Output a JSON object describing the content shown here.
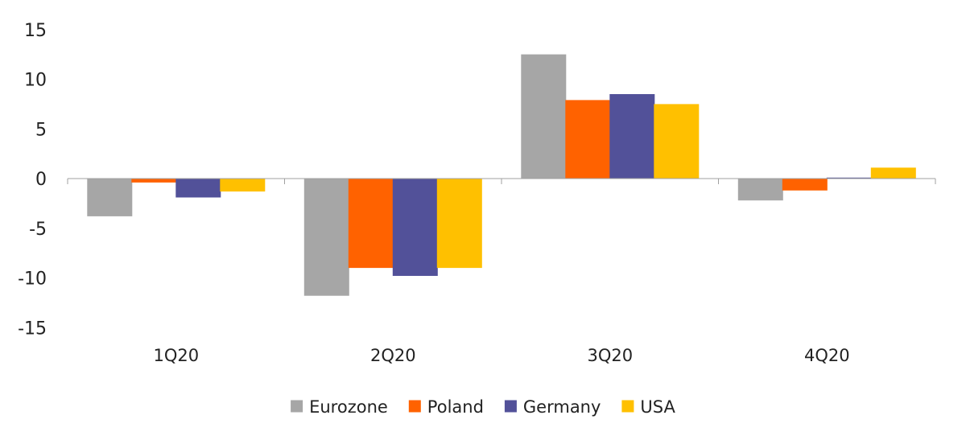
{
  "chart_data": {
    "type": "bar",
    "title": "",
    "xlabel": "",
    "ylabel": "",
    "categories": [
      "1Q20",
      "2Q20",
      "3Q20",
      "4Q20"
    ],
    "ylim": [
      -15,
      15
    ],
    "yticks": [
      15,
      10,
      5,
      0,
      -5,
      -10,
      -15
    ],
    "grid": false,
    "legend_position": "bottom-center",
    "series": [
      {
        "name": "Eurozone",
        "color": "#A6A6A6",
        "values": [
          -3.8,
          -11.8,
          12.5,
          -2.2
        ]
      },
      {
        "name": "Poland",
        "color": "#FF6200",
        "values": [
          -0.4,
          -9.0,
          7.9,
          -1.2
        ]
      },
      {
        "name": "Germany",
        "color": "#525199",
        "values": [
          -1.9,
          -9.8,
          8.5,
          0.1
        ]
      },
      {
        "name": "USA",
        "color": "#FFC000",
        "values": [
          -1.3,
          -9.0,
          7.5,
          1.1
        ]
      }
    ]
  }
}
